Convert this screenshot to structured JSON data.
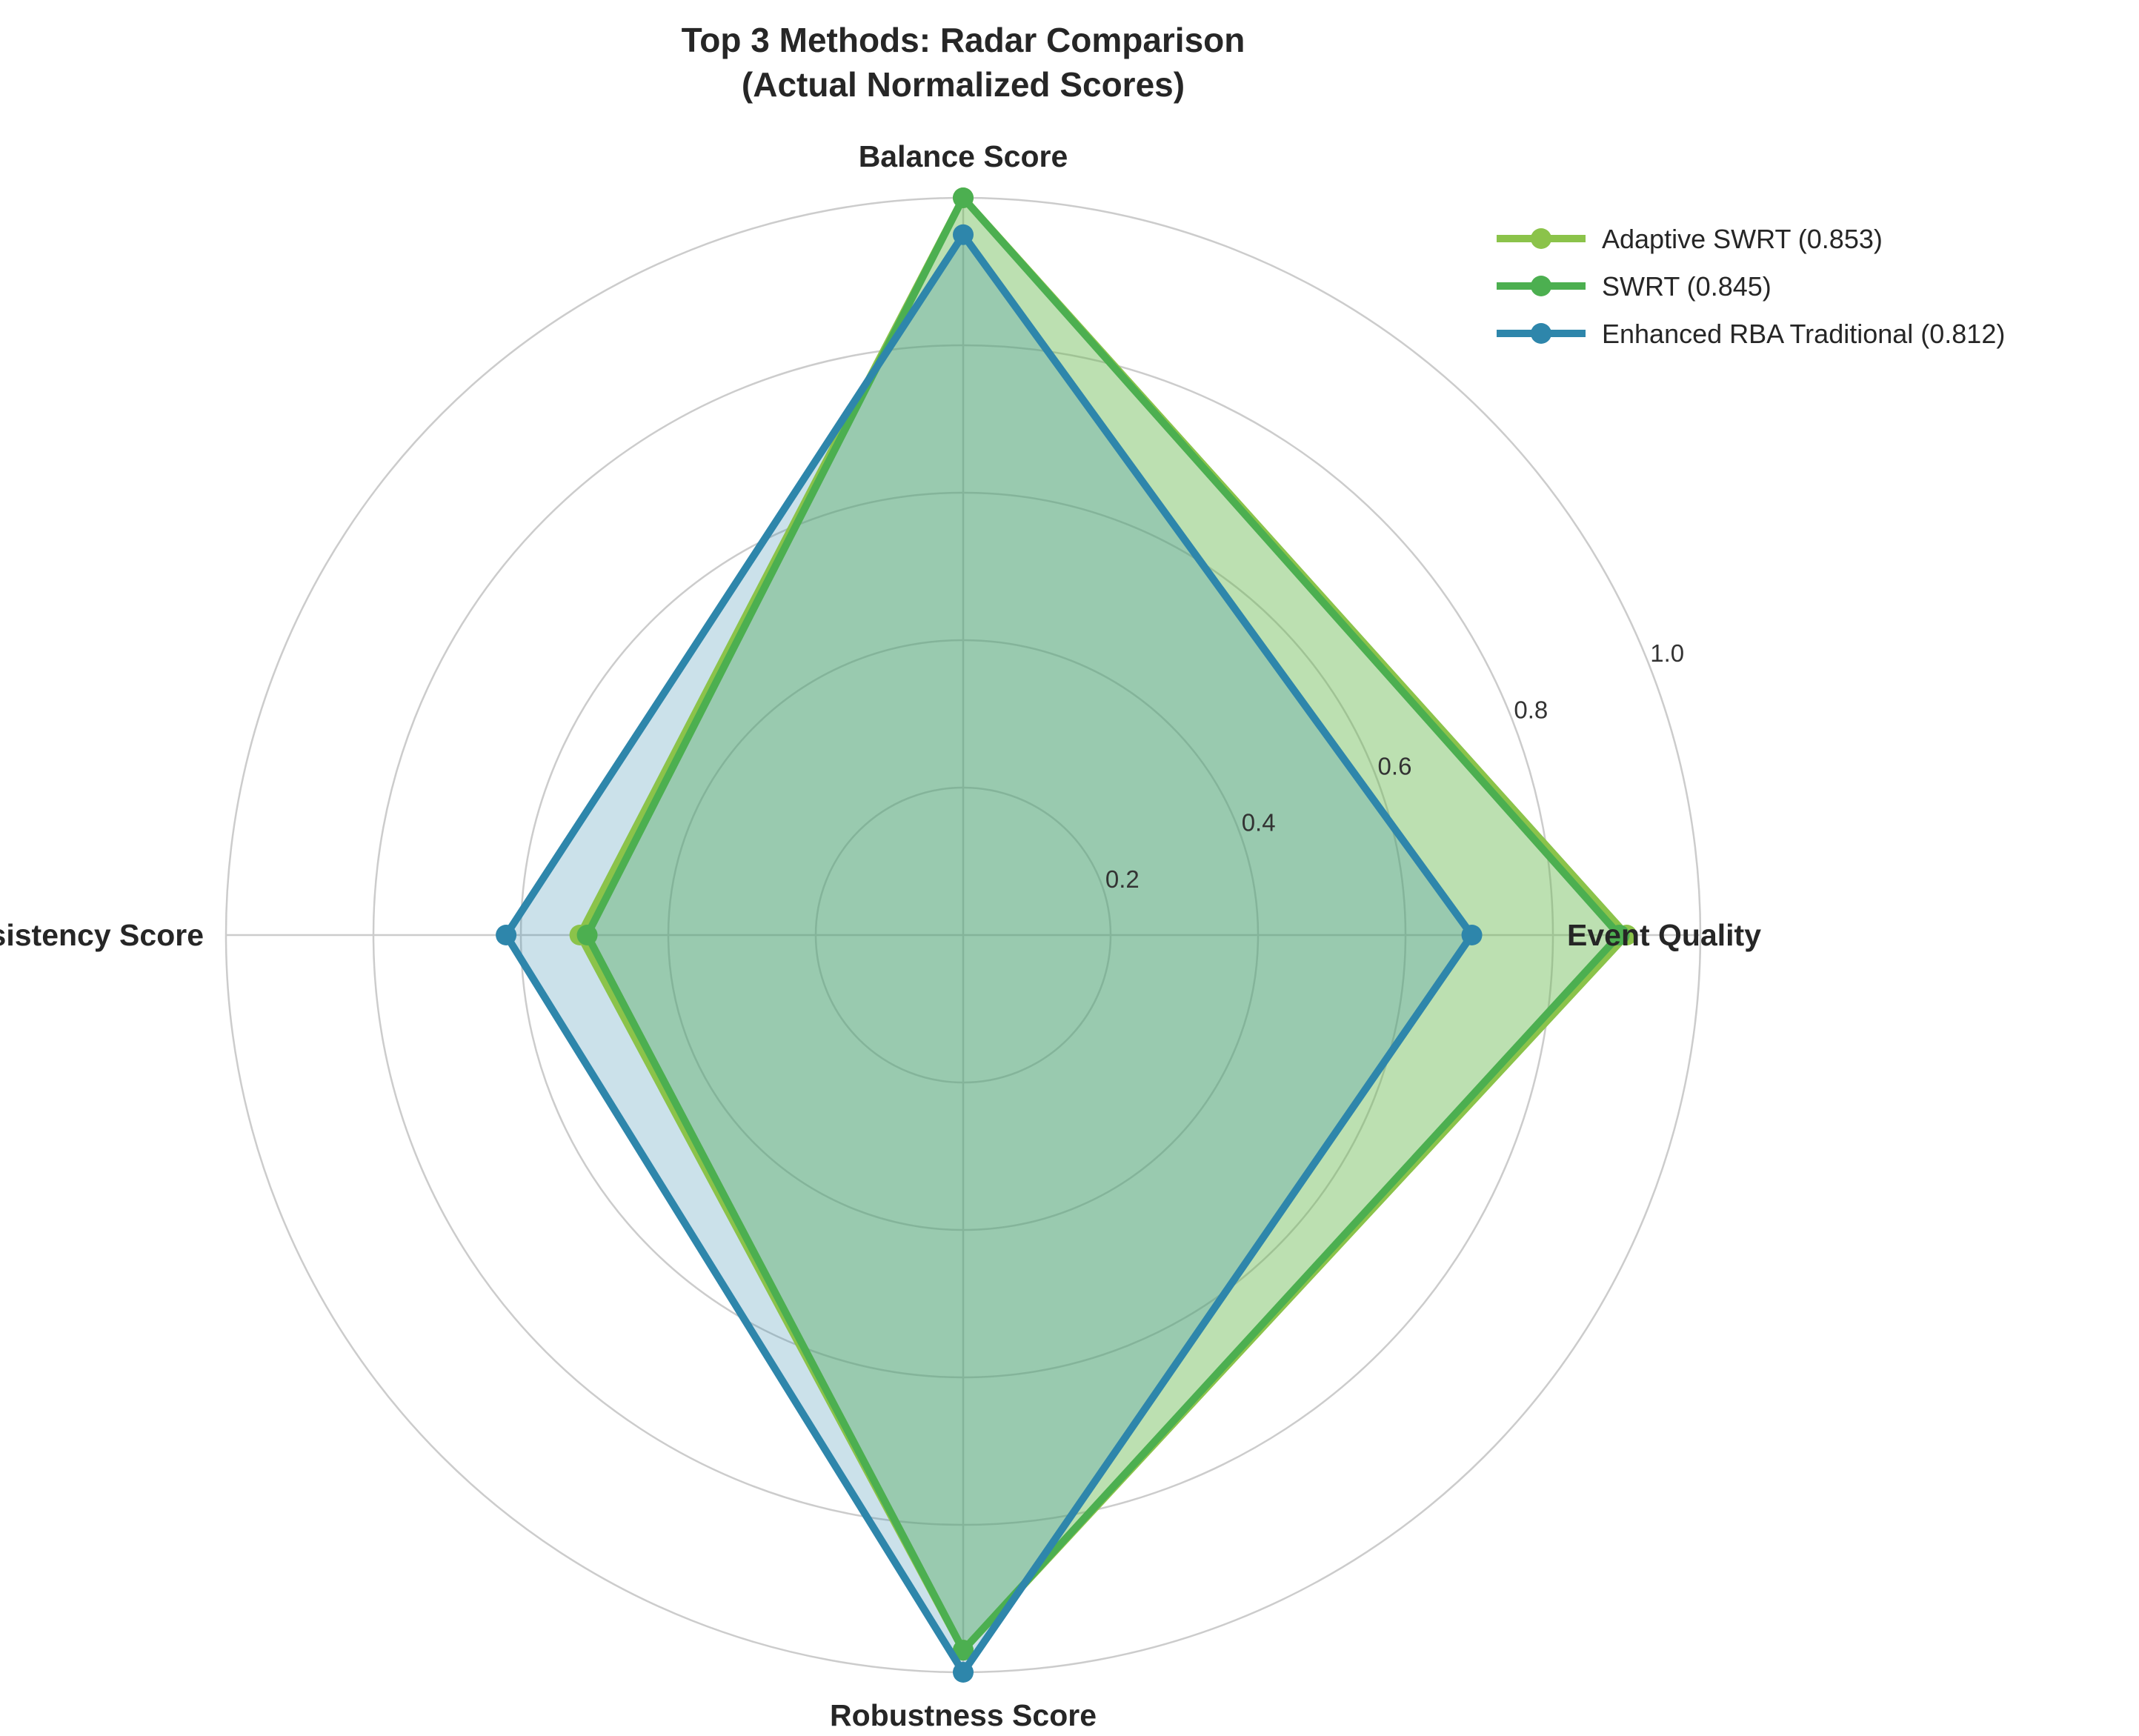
{
  "chart_data": {
    "type": "radar",
    "title": "Top 3 Methods: Radar Comparison",
    "subtitle": "(Actual Normalized Scores)",
    "axes": [
      "Event Quality",
      "Balance Score",
      "Consistency Score",
      "Robustness Score"
    ],
    "r_ticks": [
      "0.2",
      "0.4",
      "0.6",
      "0.8",
      "1.0"
    ],
    "r_range": [
      0,
      1.0
    ],
    "grid": true,
    "legend_position": "top-right",
    "series": [
      {
        "name": "Adaptive SWRT (0.853)",
        "color": "#8BC34A",
        "values": [
          0.9,
          1.0,
          0.52,
          0.97
        ]
      },
      {
        "name": "SWRT (0.845)",
        "color": "#4CAF50",
        "values": [
          0.89,
          1.0,
          0.51,
          0.97
        ]
      },
      {
        "name": "Enhanced RBA Traditional (0.812)",
        "color": "#2E86AB",
        "values": [
          0.69,
          0.95,
          0.62,
          1.0
        ]
      }
    ]
  }
}
